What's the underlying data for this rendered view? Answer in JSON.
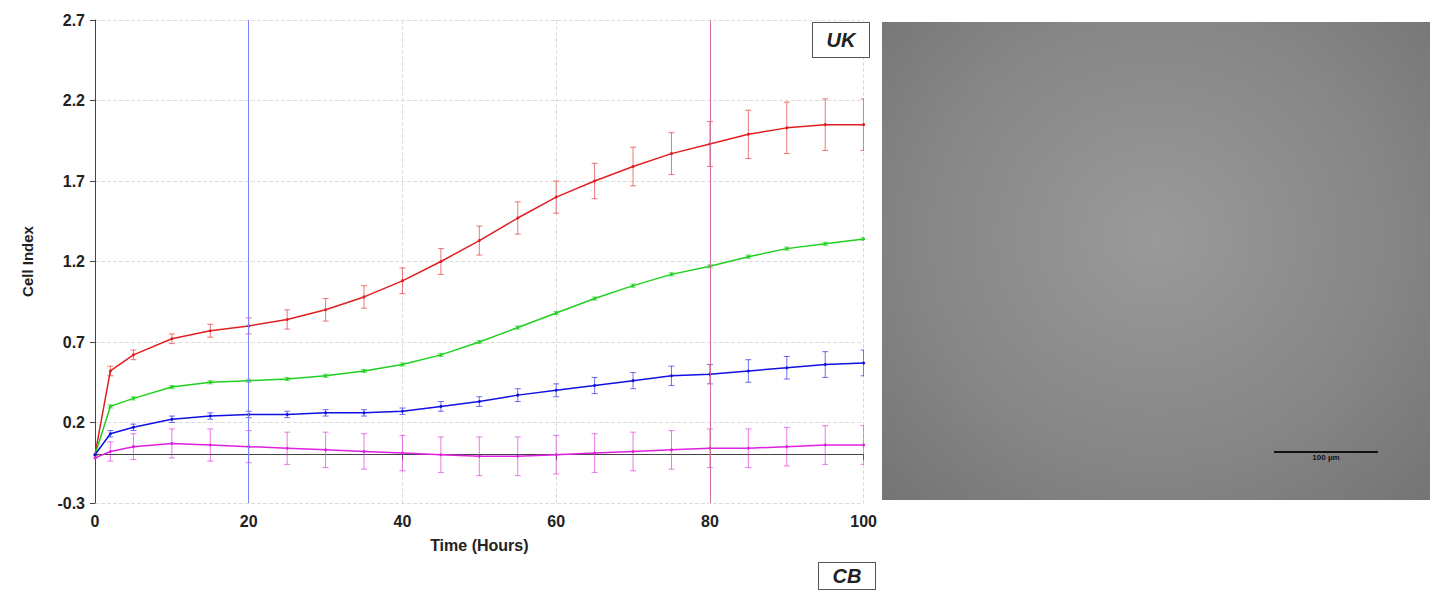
{
  "chart_data": {
    "type": "line",
    "panel_label": "UK",
    "next_panel_label": "CB",
    "image_scale_label": "100 µm",
    "x_label": "Time (Hours)",
    "y_label": "Cell Index",
    "xlim": [
      0,
      100
    ],
    "xticks": [
      0,
      20,
      40,
      60,
      80,
      100
    ],
    "ylim": [
      -0.3,
      2.7
    ],
    "yticks": [
      -0.3,
      0.2,
      0.7,
      1.2,
      1.7,
      2.2,
      2.7
    ],
    "grid": true,
    "markers": [
      {
        "x": 20,
        "color": "#8080ff"
      },
      {
        "x": 80,
        "color": "#d070a0"
      }
    ],
    "x": [
      0,
      2,
      5,
      10,
      15,
      20,
      25,
      30,
      35,
      40,
      45,
      50,
      55,
      60,
      65,
      70,
      75,
      80,
      85,
      90,
      95,
      100
    ],
    "series": [
      {
        "color": "#e02020",
        "values": [
          0.0,
          0.52,
          0.62,
          0.72,
          0.77,
          0.8,
          0.84,
          0.9,
          0.98,
          1.08,
          1.2,
          1.33,
          1.47,
          1.6,
          1.7,
          1.79,
          1.87,
          1.93,
          1.99,
          2.03,
          2.05,
          2.05
        ],
        "errors": [
          0,
          0.03,
          0.03,
          0.03,
          0.04,
          0.05,
          0.06,
          0.07,
          0.07,
          0.08,
          0.08,
          0.09,
          0.1,
          0.1,
          0.11,
          0.12,
          0.13,
          0.14,
          0.15,
          0.16,
          0.16,
          0.16
        ]
      },
      {
        "color": "#20d020",
        "values": [
          0.0,
          0.3,
          0.35,
          0.42,
          0.45,
          0.46,
          0.47,
          0.49,
          0.52,
          0.56,
          0.62,
          0.7,
          0.79,
          0.88,
          0.97,
          1.05,
          1.12,
          1.17,
          1.23,
          1.28,
          1.31,
          1.34
        ],
        "errors": [
          0,
          0.01,
          0.01,
          0.01,
          0.01,
          0.01,
          0.01,
          0.01,
          0.01,
          0.01,
          0.01,
          0.01,
          0.01,
          0.01,
          0.01,
          0.01,
          0.01,
          0.01,
          0.01,
          0.01,
          0.01,
          0.01
        ]
      },
      {
        "color": "#1010e0",
        "values": [
          0.0,
          0.13,
          0.17,
          0.22,
          0.24,
          0.25,
          0.25,
          0.26,
          0.26,
          0.27,
          0.3,
          0.33,
          0.37,
          0.4,
          0.43,
          0.46,
          0.49,
          0.5,
          0.52,
          0.54,
          0.56,
          0.57
        ],
        "errors": [
          0,
          0.02,
          0.02,
          0.02,
          0.02,
          0.02,
          0.02,
          0.02,
          0.02,
          0.02,
          0.03,
          0.03,
          0.04,
          0.04,
          0.05,
          0.05,
          0.06,
          0.06,
          0.07,
          0.07,
          0.08,
          0.08
        ]
      },
      {
        "color": "#e020e0",
        "values": [
          -0.02,
          0.02,
          0.05,
          0.07,
          0.06,
          0.05,
          0.04,
          0.03,
          0.02,
          0.01,
          0.0,
          -0.01,
          -0.01,
          0.0,
          0.01,
          0.02,
          0.03,
          0.04,
          0.04,
          0.05,
          0.06,
          0.06
        ],
        "errors": [
          0,
          0.06,
          0.08,
          0.09,
          0.1,
          0.1,
          0.1,
          0.11,
          0.11,
          0.11,
          0.11,
          0.12,
          0.12,
          0.12,
          0.12,
          0.12,
          0.12,
          0.12,
          0.12,
          0.12,
          0.12,
          0.12
        ]
      }
    ]
  }
}
